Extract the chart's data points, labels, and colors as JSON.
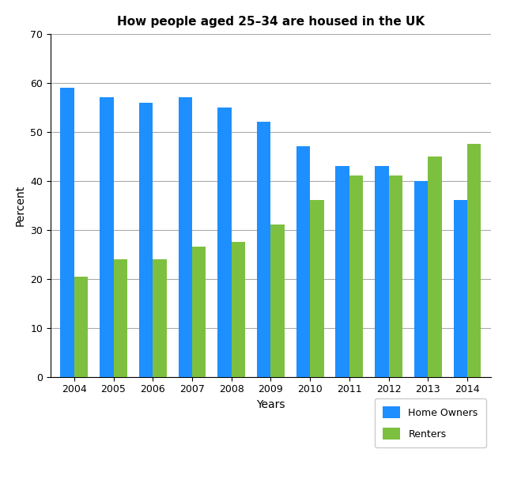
{
  "title": "How people aged 25–34 are housed in the UK",
  "years": [
    2004,
    2005,
    2006,
    2007,
    2008,
    2009,
    2010,
    2011,
    2012,
    2013,
    2014
  ],
  "home_owners": [
    59,
    57,
    56,
    57,
    55,
    52,
    47,
    43,
    43,
    40,
    36
  ],
  "renters": [
    20.5,
    24,
    24,
    26.5,
    27.5,
    31,
    36,
    41,
    41,
    45,
    47.5
  ],
  "home_owner_color": "#1E8FFF",
  "renter_color": "#7DC040",
  "xlabel": "Years",
  "ylabel": "Percent",
  "ylim": [
    0,
    70
  ],
  "yticks": [
    0,
    10,
    20,
    30,
    40,
    50,
    60,
    70
  ],
  "legend_labels": [
    "Home Owners",
    "Renters"
  ],
  "bar_width": 0.35,
  "background_color": "#FFFFFF",
  "grid_color": "#AAAAAA",
  "title_fontsize": 11,
  "axis_label_fontsize": 10,
  "tick_fontsize": 9
}
